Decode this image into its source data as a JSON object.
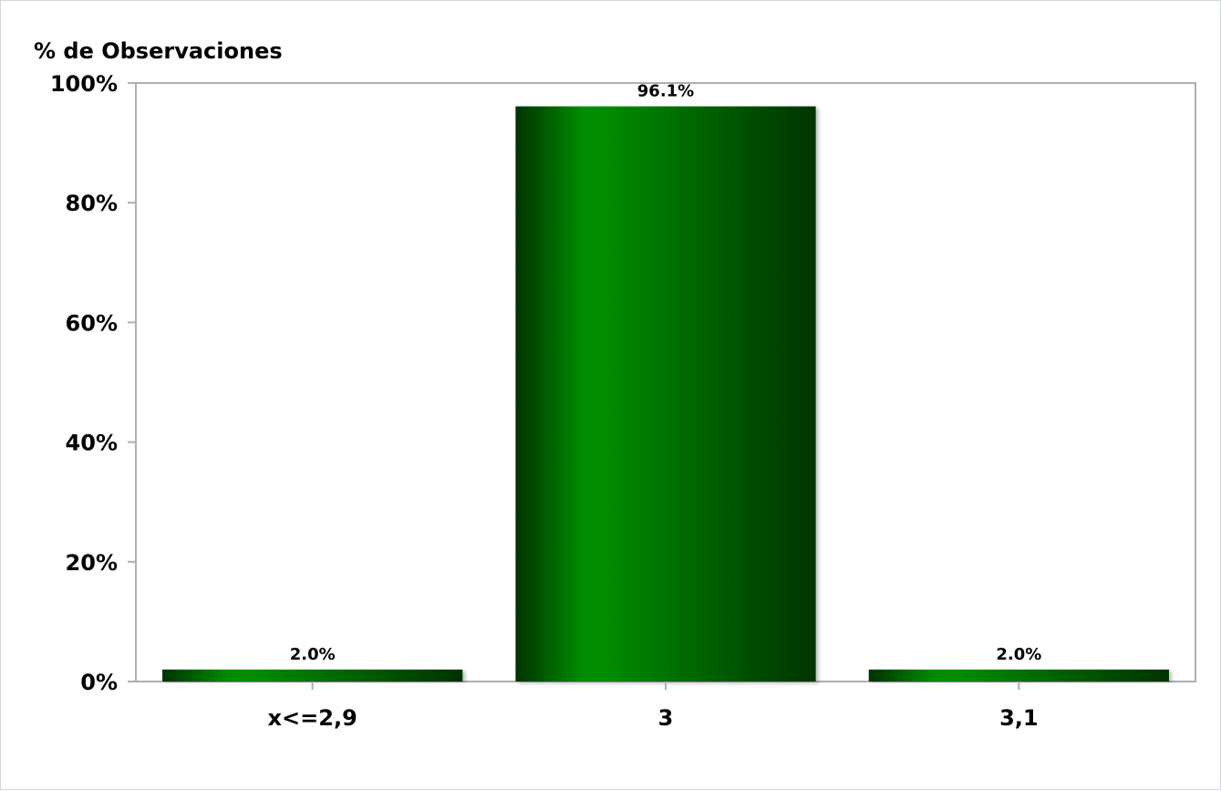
{
  "chart_data": {
    "type": "bar",
    "title": "",
    "xlabel": "",
    "ylabel": "% de Observaciones",
    "categories": [
      "x<=2,9",
      "3",
      "3,1"
    ],
    "values": [
      2.0,
      96.1,
      2.0
    ],
    "data_labels": [
      "2.0%",
      "96.1%",
      "2.0%"
    ],
    "ylim": [
      0,
      100
    ],
    "yticks": [
      0,
      20,
      40,
      60,
      80,
      100
    ],
    "ytick_labels": [
      "0%",
      "20%",
      "40%",
      "60%",
      "80%",
      "100%"
    ],
    "grid": false,
    "legend": "none",
    "colors": {
      "bar_dark": "#003300",
      "bar_light": "#008c00",
      "axis": "#a9b0b7"
    }
  }
}
